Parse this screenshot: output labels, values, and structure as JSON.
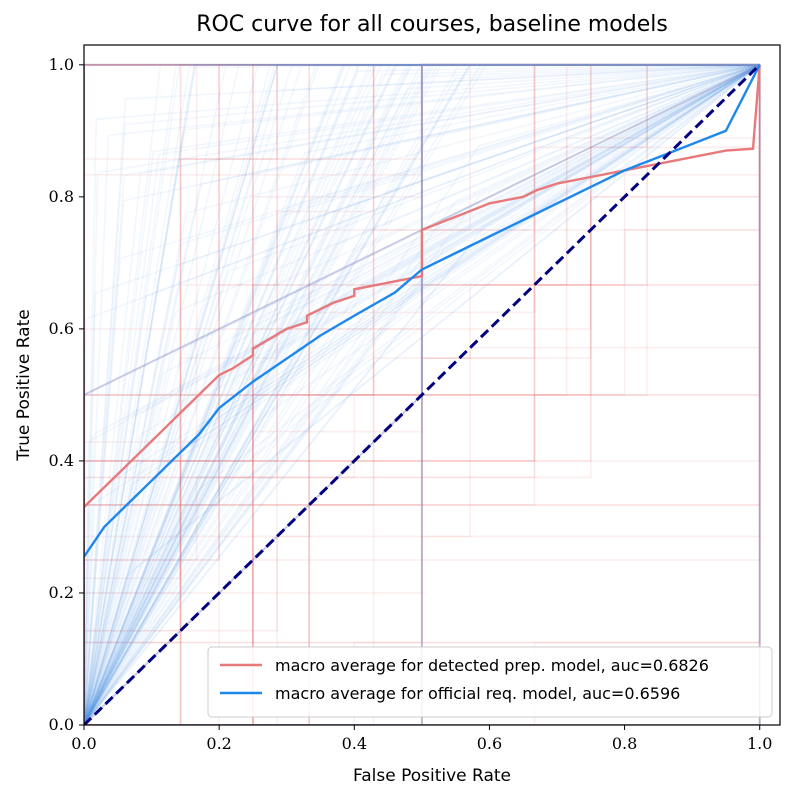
{
  "chart_data": {
    "type": "line",
    "title": "ROC curve for all courses, baseline models",
    "xlabel": "False Positive Rate",
    "ylabel": "True Positive Rate",
    "xlim": [
      0.0,
      1.03
    ],
    "ylim": [
      0.0,
      1.03
    ],
    "xticks": [
      "0.0",
      "0.2",
      "0.4",
      "0.6",
      "0.8",
      "1.0"
    ],
    "yticks": [
      "0.0",
      "0.2",
      "0.4",
      "0.6",
      "0.8",
      "1.0"
    ],
    "legend_position": "lower-right",
    "series": [
      {
        "name": "macro average for detected prep. model, auc=0.6826",
        "color": "#e8797b",
        "x": [
          0.0,
          0.02,
          0.05,
          0.08,
          0.1,
          0.13,
          0.16,
          0.17,
          0.2,
          0.22,
          0.25,
          0.25,
          0.3,
          0.33,
          0.33,
          0.37,
          0.4,
          0.4,
          0.45,
          0.5,
          0.5,
          0.55,
          0.6,
          0.65,
          0.67,
          0.7,
          0.75,
          0.8,
          0.85,
          0.9,
          0.95,
          0.99,
          1.0
        ],
        "y": [
          0.33,
          0.35,
          0.38,
          0.41,
          0.43,
          0.46,
          0.49,
          0.5,
          0.53,
          0.54,
          0.56,
          0.57,
          0.6,
          0.61,
          0.62,
          0.64,
          0.65,
          0.66,
          0.67,
          0.68,
          0.75,
          0.77,
          0.79,
          0.8,
          0.81,
          0.82,
          0.83,
          0.84,
          0.85,
          0.86,
          0.87,
          0.873,
          1.0
        ]
      },
      {
        "name": "macro average for official req. model, auc=0.6596",
        "color": "#1e88ee",
        "x": [
          0.0,
          0.03,
          0.07,
          0.1,
          0.13,
          0.17,
          0.2,
          0.25,
          0.3,
          0.35,
          0.4,
          0.46,
          0.5,
          0.55,
          0.6,
          0.65,
          0.7,
          0.75,
          0.8,
          0.85,
          0.9,
          0.95,
          1.0
        ],
        "y": [
          0.255,
          0.3,
          0.34,
          0.37,
          0.4,
          0.44,
          0.48,
          0.52,
          0.555,
          0.59,
          0.62,
          0.655,
          0.69,
          0.715,
          0.74,
          0.765,
          0.79,
          0.815,
          0.84,
          0.86,
          0.88,
          0.9,
          1.0
        ]
      },
      {
        "name": "",
        "color": "#000080",
        "dashed": true,
        "x": [
          0.0,
          1.0
        ],
        "y": [
          0.0,
          1.0
        ]
      }
    ],
    "background_curves": {
      "red_color": "#e8797b",
      "blue_color": "#5b9bea"
    }
  }
}
